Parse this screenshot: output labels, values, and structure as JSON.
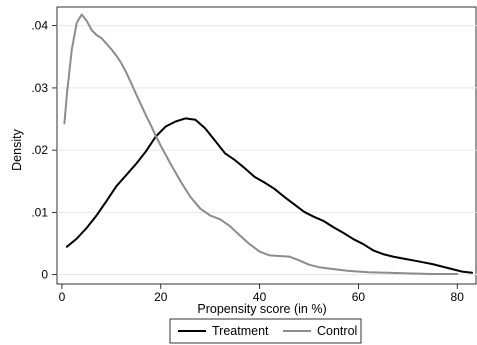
{
  "chart_data": {
    "type": "line",
    "title": "",
    "xlabel": "Propensity score (in %)",
    "ylabel": "Density",
    "xlim": [
      -1,
      84
    ],
    "ylim": [
      -0.0015,
      0.043
    ],
    "x_ticks": [
      0,
      20,
      40,
      60,
      80
    ],
    "x_tick_labels": [
      "0",
      "20",
      "40",
      "60",
      "80"
    ],
    "y_ticks": [
      0,
      0.01,
      0.02,
      0.03,
      0.04
    ],
    "y_tick_labels": [
      "0",
      ".01",
      ".02",
      ".03",
      ".04"
    ],
    "grid": "horizontal",
    "legend_position": "bottom",
    "series": [
      {
        "name": "Treatment",
        "color": "#000000",
        "x": [
          1,
          3,
          5,
          7,
          9,
          11,
          13,
          15,
          17,
          19,
          21,
          23,
          25,
          27,
          29,
          31,
          33,
          35,
          37,
          39,
          41,
          43,
          45,
          47,
          49,
          51,
          53,
          55,
          57,
          59,
          61,
          63,
          65,
          67,
          69,
          71,
          73,
          75,
          77,
          79,
          81,
          83
        ],
        "y": [
          0.0045,
          0.0058,
          0.0075,
          0.0095,
          0.0118,
          0.0142,
          0.016,
          0.0178,
          0.0198,
          0.0222,
          0.0238,
          0.0246,
          0.0251,
          0.0249,
          0.0235,
          0.0215,
          0.0195,
          0.0184,
          0.0171,
          0.0157,
          0.0148,
          0.0138,
          0.0125,
          0.0113,
          0.0101,
          0.0093,
          0.0086,
          0.0076,
          0.0067,
          0.0057,
          0.0049,
          0.0039,
          0.0033,
          0.0029,
          0.0026,
          0.0023,
          0.002,
          0.0017,
          0.0013,
          0.0009,
          0.0005,
          0.0003
        ]
      },
      {
        "name": "Control",
        "color": "#8c8c8c",
        "x": [
          0.5,
          1,
          2,
          3,
          4,
          5,
          6,
          7,
          8,
          9,
          10,
          11,
          12,
          13,
          14,
          15,
          16,
          17,
          18,
          19,
          20,
          22,
          24,
          26,
          28,
          30,
          32,
          34,
          36,
          38,
          40,
          42,
          44,
          46,
          48,
          50,
          52,
          55,
          58,
          62,
          66,
          70,
          75,
          80
        ],
        "y": [
          0.0243,
          0.029,
          0.0362,
          0.0405,
          0.0418,
          0.0408,
          0.0393,
          0.0385,
          0.038,
          0.0371,
          0.0362,
          0.0352,
          0.034,
          0.0325,
          0.0308,
          0.029,
          0.0273,
          0.0256,
          0.024,
          0.0223,
          0.0207,
          0.0178,
          0.015,
          0.0125,
          0.0106,
          0.0095,
          0.0089,
          0.0078,
          0.0063,
          0.0049,
          0.0037,
          0.0031,
          0.003,
          0.0029,
          0.0023,
          0.0016,
          0.0012,
          0.0009,
          0.0006,
          0.0004,
          0.0003,
          0.0002,
          0.0001,
          0.0001
        ]
      }
    ]
  }
}
